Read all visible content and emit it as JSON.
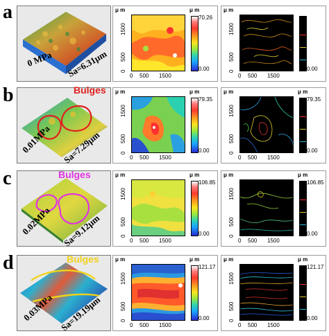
{
  "colors": {
    "red_outline": "#e02020",
    "magenta_outline": "#e033e0",
    "yellow_outline": "#f1d21a"
  },
  "rows": [
    {
      "label": "a",
      "pressure": "0 MPa",
      "sa": "Sa=6.31μm",
      "bulges": "",
      "bulges_color": "",
      "max_color": "70.26",
      "max_contour": "",
      "min_color": "0.00",
      "min_contour": "0.00"
    },
    {
      "label": "b",
      "pressure": "0.01MPa",
      "sa": "Sa=7.29μm",
      "bulges": "Bulges",
      "bulges_color": "#e02020",
      "max_color": "79.35",
      "max_contour": "79.35",
      "min_color": "0.00",
      "min_contour": "0.00"
    },
    {
      "label": "c",
      "pressure": "0.02MPa",
      "sa": "Sa=9.12μm",
      "bulges": "Bulges",
      "bulges_color": "#e033e0",
      "max_color": "106.85",
      "max_contour": "106.85",
      "min_color": "0.00",
      "min_contour": "0.00"
    },
    {
      "label": "d",
      "pressure": "0.03MPa",
      "sa": "Sa=19.19μm",
      "bulges": "Bulges",
      "bulges_color": "#f1d21a",
      "max_color": "121.17",
      "max_contour": "121.17",
      "min_color": "0.00",
      "min_contour": "0.00"
    }
  ],
  "axes": {
    "unit": "μ m",
    "y_ticks": [
      "0",
      "500",
      "1500"
    ],
    "x_ticks": [
      "0",
      "500",
      "1500"
    ]
  }
}
